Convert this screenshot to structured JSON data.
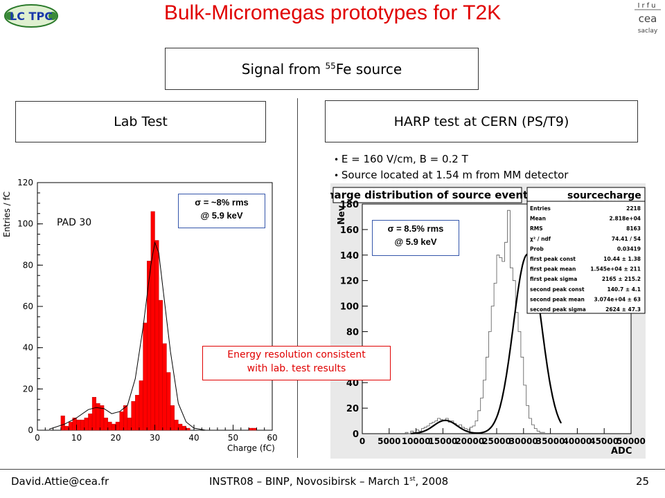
{
  "slide": {
    "title": "Bulk-Micromegas prototypes for T2K",
    "logo_left": "LC TPC",
    "logo_right": [
      "Irfu",
      "cea",
      "saclay"
    ],
    "signal_title": "Signal from",
    "signal_superscript": "55",
    "signal_suffix": "Fe source",
    "lab_title": "Lab Test",
    "harp_title": "HARP test at CERN (PS/T9)",
    "bullets": [
      "E = 160 V/cm, B = 0.2 T",
      "Source located at 1.54 m from MM detector"
    ],
    "sigma_left": [
      "σ = ~8% rms",
      "@ 5.9 keV"
    ],
    "sigma_right": [
      "σ = 8.5% rms",
      "@ 5.9 keV"
    ],
    "energy_note": [
      "Energy resolution consistent",
      "with lab. test results"
    ],
    "footer": {
      "email": "David.Attie@cea.fr",
      "center": "INSTR08 – BINP, Novosibirsk – March 1",
      "center_sup": "st",
      "center_end": ", 2008",
      "page": "25"
    }
  },
  "chart_data": [
    {
      "type": "bar",
      "ylabel": "Entries / fC",
      "xlabel": "Charge (fC)",
      "annotation": "PAD 30",
      "xlim": [
        0,
        60
      ],
      "ylim": [
        0,
        120
      ],
      "xticks": [
        0,
        10,
        20,
        30,
        40,
        50,
        60
      ],
      "yticks": [
        0,
        20,
        40,
        60,
        80,
        100,
        120
      ],
      "bar_color": "#ff0000",
      "bin_width": 1,
      "bin_start": 6,
      "values": [
        7,
        2,
        4,
        6,
        5,
        5,
        6,
        8,
        16,
        13,
        12,
        6,
        4,
        3,
        4,
        9,
        12,
        6,
        14,
        17,
        24,
        52,
        82,
        106,
        92,
        63,
        42,
        28,
        12,
        5,
        3,
        2,
        1,
        0,
        0,
        0,
        0,
        0,
        0,
        0,
        0,
        0,
        0,
        0,
        0,
        0,
        0,
        0,
        1,
        1
      ],
      "fit": [
        [
          3,
          0.5
        ],
        [
          7,
          3
        ],
        [
          10,
          6
        ],
        [
          13,
          10
        ],
        [
          15,
          11
        ],
        [
          17,
          10.5
        ],
        [
          19,
          8
        ],
        [
          21,
          9
        ],
        [
          23,
          12
        ],
        [
          25,
          25
        ],
        [
          27,
          50
        ],
        [
          29,
          80
        ],
        [
          30,
          91
        ],
        [
          31,
          86
        ],
        [
          32,
          70
        ],
        [
          34,
          38
        ],
        [
          36,
          13
        ],
        [
          38,
          4
        ],
        [
          40,
          1
        ],
        [
          43,
          0
        ]
      ]
    },
    {
      "type": "bar",
      "title": "charge distribution of source events",
      "ylabel": "Nev",
      "xlabel": "ADC",
      "stats_title": "sourcecharge",
      "stats": [
        [
          "Entries",
          "2218"
        ],
        [
          "Mean",
          "2.818e+04"
        ],
        [
          "RMS",
          "8163"
        ],
        [
          "χ² / ndf",
          "74.41 / 54"
        ],
        [
          "Prob",
          "0.03419"
        ],
        [
          "first peak const",
          "10.44 ± 1.38"
        ],
        [
          "first peak mean",
          "1.545e+04 ± 211"
        ],
        [
          "first peak sigma",
          "2165 ± 215.2"
        ],
        [
          "second peak const",
          "140.7 ± 4.1"
        ],
        [
          "second peak mean",
          "3.074e+04 ± 63"
        ],
        [
          "second peak sigma",
          "2624 ± 47.3"
        ]
      ],
      "xlim": [
        0,
        50000
      ],
      "ylim": [
        0,
        180
      ],
      "xticks": [
        0,
        5000,
        10000,
        15000,
        20000,
        25000,
        30000,
        35000,
        40000,
        45000,
        50000
      ],
      "xtick_labels": [
        "0",
        "5000",
        "10000",
        "15000",
        "20000",
        "25000",
        "30000",
        "35000",
        "40000",
        "45000",
        "50000"
      ],
      "yticks": [
        0,
        20,
        40,
        60,
        80,
        100,
        120,
        140,
        160,
        180
      ],
      "ytick_labels": [
        "0",
        "20",
        "40",
        "60",
        "80",
        "100",
        "120",
        "140",
        "160",
        "180"
      ],
      "bin_width": 500,
      "bin_start": 8000,
      "values": [
        1,
        0,
        2,
        1,
        3,
        2,
        4,
        5,
        6,
        8,
        9,
        10,
        12,
        11,
        10,
        12,
        9,
        10,
        8,
        6,
        7,
        5,
        4,
        3,
        5,
        6,
        10,
        18,
        28,
        42,
        60,
        80,
        100,
        118,
        140,
        138,
        135,
        150,
        175,
        130,
        120,
        95,
        80,
        60,
        38,
        22,
        12,
        7,
        4,
        2,
        1,
        1
      ],
      "peaks": [
        {
          "const": 10.44,
          "mean": 15450,
          "sigma": 2165
        },
        {
          "const": 140.7,
          "mean": 30740,
          "sigma": 2624
        }
      ]
    }
  ]
}
